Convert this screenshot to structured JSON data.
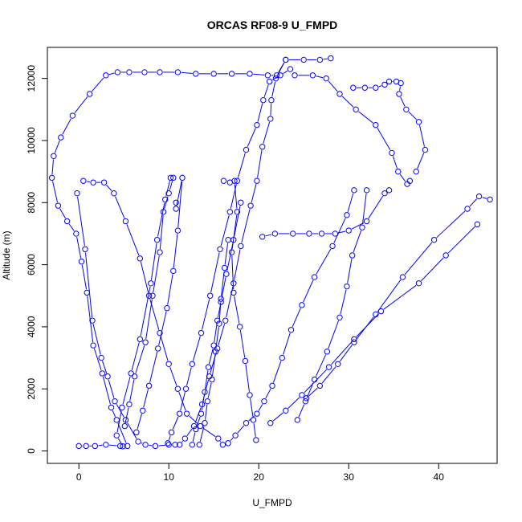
{
  "chart_data": {
    "type": "scatter",
    "title": "ORCAS RF08-9 U_FMPD",
    "xlabel": "U_FMPD",
    "ylabel": "Altitude (m)",
    "xlim": [
      -3.5,
      46.5
    ],
    "ylim": [
      -400,
      13000
    ],
    "xticks": [
      0,
      10,
      20,
      30,
      40
    ],
    "yticks": [
      0,
      2000,
      4000,
      6000,
      8000,
      10000,
      12000
    ],
    "grid": false,
    "line_color": "#0000ff",
    "marker": "open-circle",
    "series": [
      {
        "points": [
          [
            0,
            160
          ],
          [
            0.8,
            160
          ],
          [
            1.8,
            160
          ],
          [
            3,
            200
          ],
          [
            4.6,
            160
          ],
          [
            5.4,
            160
          ],
          [
            4.2,
            1000
          ],
          [
            3.6,
            1400
          ],
          [
            2.6,
            2500
          ],
          [
            1.6,
            3400
          ],
          [
            0.9,
            5100
          ],
          [
            0.3,
            6100
          ],
          [
            -0.3,
            7000
          ],
          [
            -1.3,
            7400
          ],
          [
            -2.3,
            7900
          ],
          [
            -3.0,
            8800
          ],
          [
            -2.8,
            9500
          ],
          [
            -2.0,
            10100
          ],
          [
            -0.7,
            10800
          ],
          [
            1.2,
            11500
          ],
          [
            3.0,
            12100
          ],
          [
            4.3,
            12200
          ],
          [
            5.6,
            12200
          ],
          [
            7.3,
            12200
          ],
          [
            9.0,
            12200
          ],
          [
            11.0,
            12200
          ],
          [
            13.0,
            12150
          ],
          [
            15.0,
            12150
          ],
          [
            17.0,
            12150
          ],
          [
            19.0,
            12150
          ],
          [
            21.0,
            12100
          ],
          [
            22.0,
            12100
          ],
          [
            23.0,
            12600
          ],
          [
            25.0,
            12600
          ],
          [
            26.8,
            12600
          ],
          [
            28.0,
            12650
          ]
        ]
      },
      {
        "points": [
          [
            24.0,
            12100
          ],
          [
            26.0,
            12100
          ],
          [
            27.5,
            12000
          ],
          [
            29.0,
            11500
          ],
          [
            30.8,
            11000
          ],
          [
            33.0,
            10500
          ],
          [
            34.8,
            9600
          ],
          [
            35.5,
            9000
          ],
          [
            36.5,
            8600
          ],
          [
            36.8,
            8700
          ]
        ]
      },
      {
        "points": [
          [
            30.5,
            11700
          ],
          [
            31.8,
            11700
          ],
          [
            33.0,
            11700
          ],
          [
            34.0,
            11800
          ],
          [
            34.5,
            11900
          ],
          [
            35.3,
            11900
          ],
          [
            35.8,
            11850
          ],
          [
            35.6,
            11500
          ],
          [
            36.4,
            11000
          ],
          [
            37.8,
            10600
          ],
          [
            38.5,
            9700
          ],
          [
            37.5,
            9000
          ]
        ]
      },
      {
        "points": [
          [
            0.5,
            8700
          ],
          [
            1.6,
            8650
          ],
          [
            2.8,
            8650
          ],
          [
            3.9,
            8300
          ],
          [
            5.2,
            7400
          ],
          [
            6.8,
            6200
          ],
          [
            7.8,
            5000
          ],
          [
            9.0,
            3800
          ],
          [
            10.0,
            2800
          ],
          [
            11.0,
            2000
          ],
          [
            12.0,
            1200
          ],
          [
            13.5,
            800
          ],
          [
            15.5,
            400
          ],
          [
            16.0,
            200
          ]
        ]
      },
      {
        "points": [
          [
            -0.2,
            8300
          ],
          [
            0.7,
            6500
          ],
          [
            1.5,
            4200
          ],
          [
            2.5,
            3000
          ],
          [
            3.2,
            2400
          ],
          [
            4.0,
            1600
          ],
          [
            5.2,
            1000
          ],
          [
            6.6,
            300
          ],
          [
            7.4,
            200
          ],
          [
            8.5,
            160
          ],
          [
            10.0,
            200
          ],
          [
            10.7,
            200
          ]
        ]
      },
      {
        "points": [
          [
            16.1,
            8700
          ],
          [
            16.8,
            8650
          ],
          [
            17.3,
            8700
          ],
          [
            17.6,
            7700
          ],
          [
            17.0,
            6400
          ],
          [
            17.2,
            5100
          ],
          [
            17.9,
            4000
          ],
          [
            18.5,
            2900
          ],
          [
            19.0,
            1800
          ],
          [
            19.4,
            1000
          ],
          [
            19.7,
            350
          ]
        ]
      },
      {
        "points": [
          [
            23.5,
            12300
          ],
          [
            22.4,
            12100
          ],
          [
            21.2,
            11900
          ],
          [
            20.5,
            11300
          ],
          [
            19.8,
            10500
          ],
          [
            18.6,
            9700
          ],
          [
            17.6,
            8700
          ],
          [
            16.8,
            7700
          ],
          [
            15.7,
            6500
          ],
          [
            14.6,
            5000
          ],
          [
            13.6,
            3800
          ],
          [
            12.6,
            2800
          ],
          [
            11.9,
            2000
          ],
          [
            11.2,
            1200
          ],
          [
            10.3,
            600
          ],
          [
            9.9,
            250
          ]
        ]
      },
      {
        "points": [
          [
            23.0,
            12600
          ],
          [
            21.9,
            12000
          ],
          [
            21.4,
            11300
          ],
          [
            21.3,
            10700
          ],
          [
            20.4,
            9800
          ],
          [
            19.8,
            8700
          ],
          [
            19.1,
            7900
          ],
          [
            18.0,
            6600
          ],
          [
            17.2,
            5400
          ],
          [
            16.3,
            4200
          ],
          [
            15.4,
            3300
          ],
          [
            14.5,
            2400
          ],
          [
            13.7,
            1500
          ],
          [
            12.8,
            800
          ],
          [
            11.8,
            400
          ],
          [
            11.2,
            200
          ]
        ]
      },
      {
        "points": [
          [
            10.2,
            8800
          ],
          [
            9.6,
            8100
          ],
          [
            8.7,
            6800
          ],
          [
            8.0,
            5400
          ],
          [
            6.8,
            3600
          ],
          [
            5.8,
            2500
          ],
          [
            4.8,
            1400
          ],
          [
            4.2,
            500
          ],
          [
            4.9,
            150
          ]
        ]
      },
      {
        "points": [
          [
            10.5,
            8800
          ],
          [
            10.0,
            8300
          ],
          [
            9.4,
            7700
          ],
          [
            9.0,
            6400
          ],
          [
            8.2,
            5000
          ],
          [
            7.4,
            3500
          ],
          [
            6.2,
            2400
          ],
          [
            5.6,
            1500
          ],
          [
            5.1,
            800
          ]
        ]
      },
      {
        "points": [
          [
            10.8,
            8000
          ],
          [
            10.8,
            7800
          ],
          [
            11.5,
            8800
          ],
          [
            11.0,
            7100
          ],
          [
            10.5,
            5800
          ],
          [
            9.8,
            4600
          ],
          [
            8.8,
            3300
          ],
          [
            7.8,
            2100
          ],
          [
            7.1,
            1300
          ],
          [
            6.4,
            600
          ]
        ]
      },
      {
        "points": [
          [
            20.4,
            6900
          ],
          [
            21.8,
            7000
          ],
          [
            23.8,
            7000
          ],
          [
            25.6,
            7000
          ],
          [
            27.0,
            7000
          ],
          [
            28.5,
            7000
          ],
          [
            30.0,
            7100
          ],
          [
            32.0,
            7400
          ],
          [
            34.0,
            8300
          ],
          [
            34.5,
            8400
          ]
        ]
      },
      {
        "points": [
          [
            30.6,
            8400
          ],
          [
            29.8,
            7600
          ],
          [
            28.2,
            6600
          ],
          [
            26.2,
            5600
          ],
          [
            24.8,
            4700
          ],
          [
            23.6,
            3900
          ],
          [
            22.6,
            3000
          ],
          [
            21.5,
            2100
          ],
          [
            20.6,
            1600
          ],
          [
            19.8,
            1200
          ],
          [
            18.6,
            900
          ],
          [
            17.4,
            500
          ],
          [
            16.6,
            250
          ]
        ]
      },
      {
        "points": [
          [
            32.0,
            8400
          ],
          [
            31.5,
            7200
          ],
          [
            30.4,
            6300
          ],
          [
            29.8,
            5300
          ],
          [
            29.0,
            4300
          ],
          [
            27.6,
            3200
          ],
          [
            26.2,
            2300
          ],
          [
            25.2,
            1600
          ],
          [
            24.3,
            1000
          ]
        ]
      },
      {
        "points": [
          [
            45.7,
            8100
          ],
          [
            44.5,
            8200
          ],
          [
            43.2,
            7800
          ],
          [
            39.5,
            6800
          ],
          [
            36.0,
            5600
          ],
          [
            33.0,
            4400
          ],
          [
            30.6,
            3500
          ],
          [
            28.8,
            2800
          ],
          [
            26.8,
            2100
          ],
          [
            25.3,
            1700
          ]
        ]
      },
      {
        "points": [
          [
            44.3,
            7300
          ],
          [
            40.8,
            6300
          ],
          [
            37.8,
            5400
          ],
          [
            33.6,
            4500
          ],
          [
            30.6,
            3600
          ],
          [
            27.8,
            2700
          ],
          [
            24.8,
            1800
          ],
          [
            23.0,
            1300
          ],
          [
            21.3,
            900
          ]
        ]
      },
      {
        "points": [
          [
            18.0,
            8000
          ],
          [
            17.2,
            6800
          ],
          [
            16.4,
            5700
          ],
          [
            15.8,
            4800
          ],
          [
            15.4,
            4200
          ],
          [
            15.0,
            3400
          ],
          [
            14.4,
            2700
          ],
          [
            14.0,
            1900
          ],
          [
            13.6,
            1200
          ],
          [
            13.0,
            700
          ],
          [
            12.6,
            200
          ]
        ]
      },
      {
        "points": [
          [
            16.6,
            6800
          ],
          [
            16.2,
            5900
          ],
          [
            15.8,
            4900
          ],
          [
            15.6,
            4100
          ],
          [
            15.2,
            3200
          ],
          [
            14.8,
            2300
          ],
          [
            14.3,
            1600
          ],
          [
            14.0,
            900
          ],
          [
            13.4,
            200
          ]
        ]
      }
    ]
  }
}
